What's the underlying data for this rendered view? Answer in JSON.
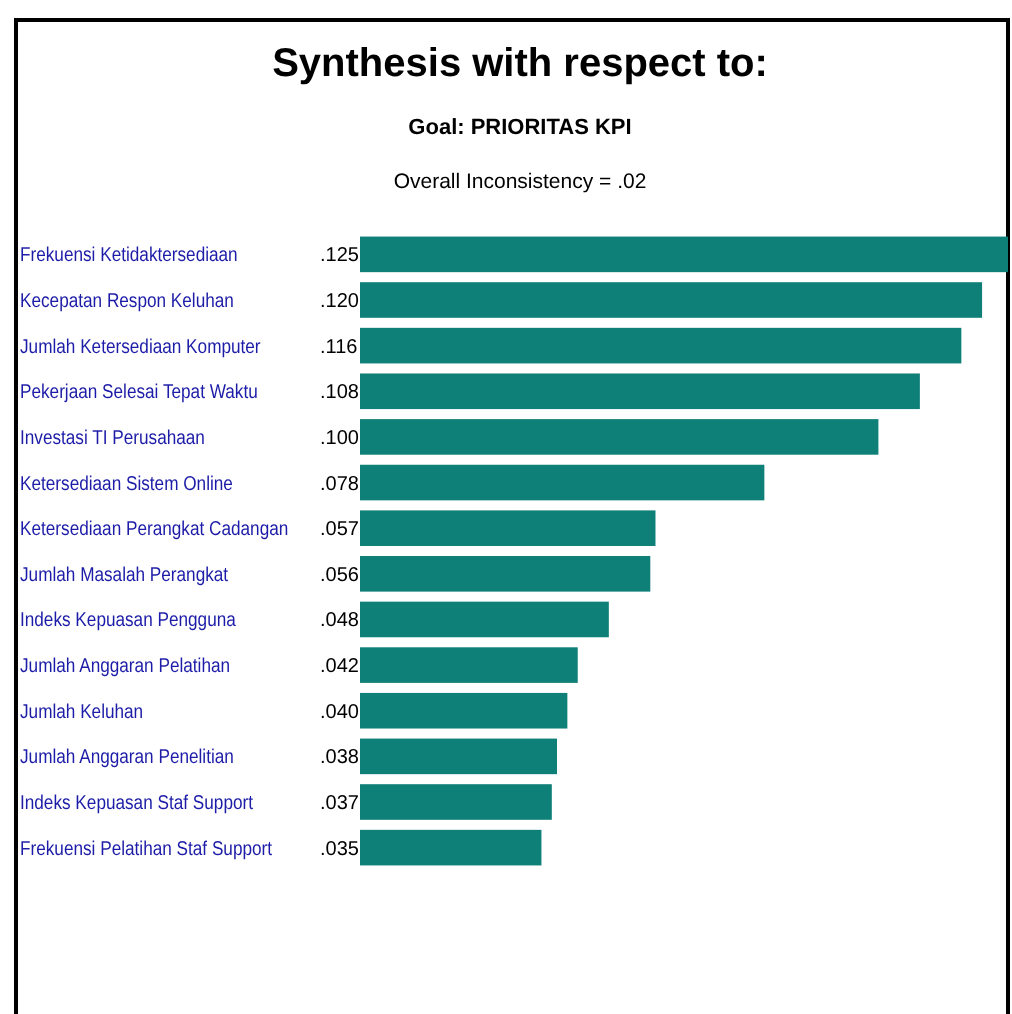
{
  "chart_data": {
    "type": "bar",
    "orientation": "horizontal",
    "title": "Synthesis with respect to:",
    "subtitle": "Goal: PRIORITAS KPI",
    "annotations": [
      "Overall Inconsistency = .02"
    ],
    "categories": [
      "Frekuensi Ketidaktersediaan",
      "Kecepatan Respon Keluhan",
      "Jumlah Ketersediaan Komputer",
      "Pekerjaan Selesai Tepat Waktu",
      "Investasi TI Perusahaan",
      "Ketersediaan Sistem Online",
      "Ketersediaan Perangkat Cadangan",
      "Jumlah Masalah Perangkat",
      "Indeks Kepuasan Pengguna",
      "Jumlah Anggaran Pelatihan",
      "Jumlah Keluhan",
      "Jumlah Anggaran Penelitian",
      "Indeks Kepuasan Staf Support",
      "Frekuensi Pelatihan Staf Support"
    ],
    "values": [
      0.125,
      0.12,
      0.116,
      0.108,
      0.1,
      0.078,
      0.057,
      0.056,
      0.048,
      0.042,
      0.04,
      0.038,
      0.037,
      0.035
    ],
    "value_labels": [
      ".125",
      ".120",
      ".116",
      ".108",
      ".100",
      ".078",
      ".057",
      ".056",
      ".048",
      ".042",
      ".040",
      ".038",
      ".037",
      ".035"
    ],
    "color": "#0e8078",
    "xlim": [
      0,
      0.125
    ],
    "tick_labels": "y"
  }
}
